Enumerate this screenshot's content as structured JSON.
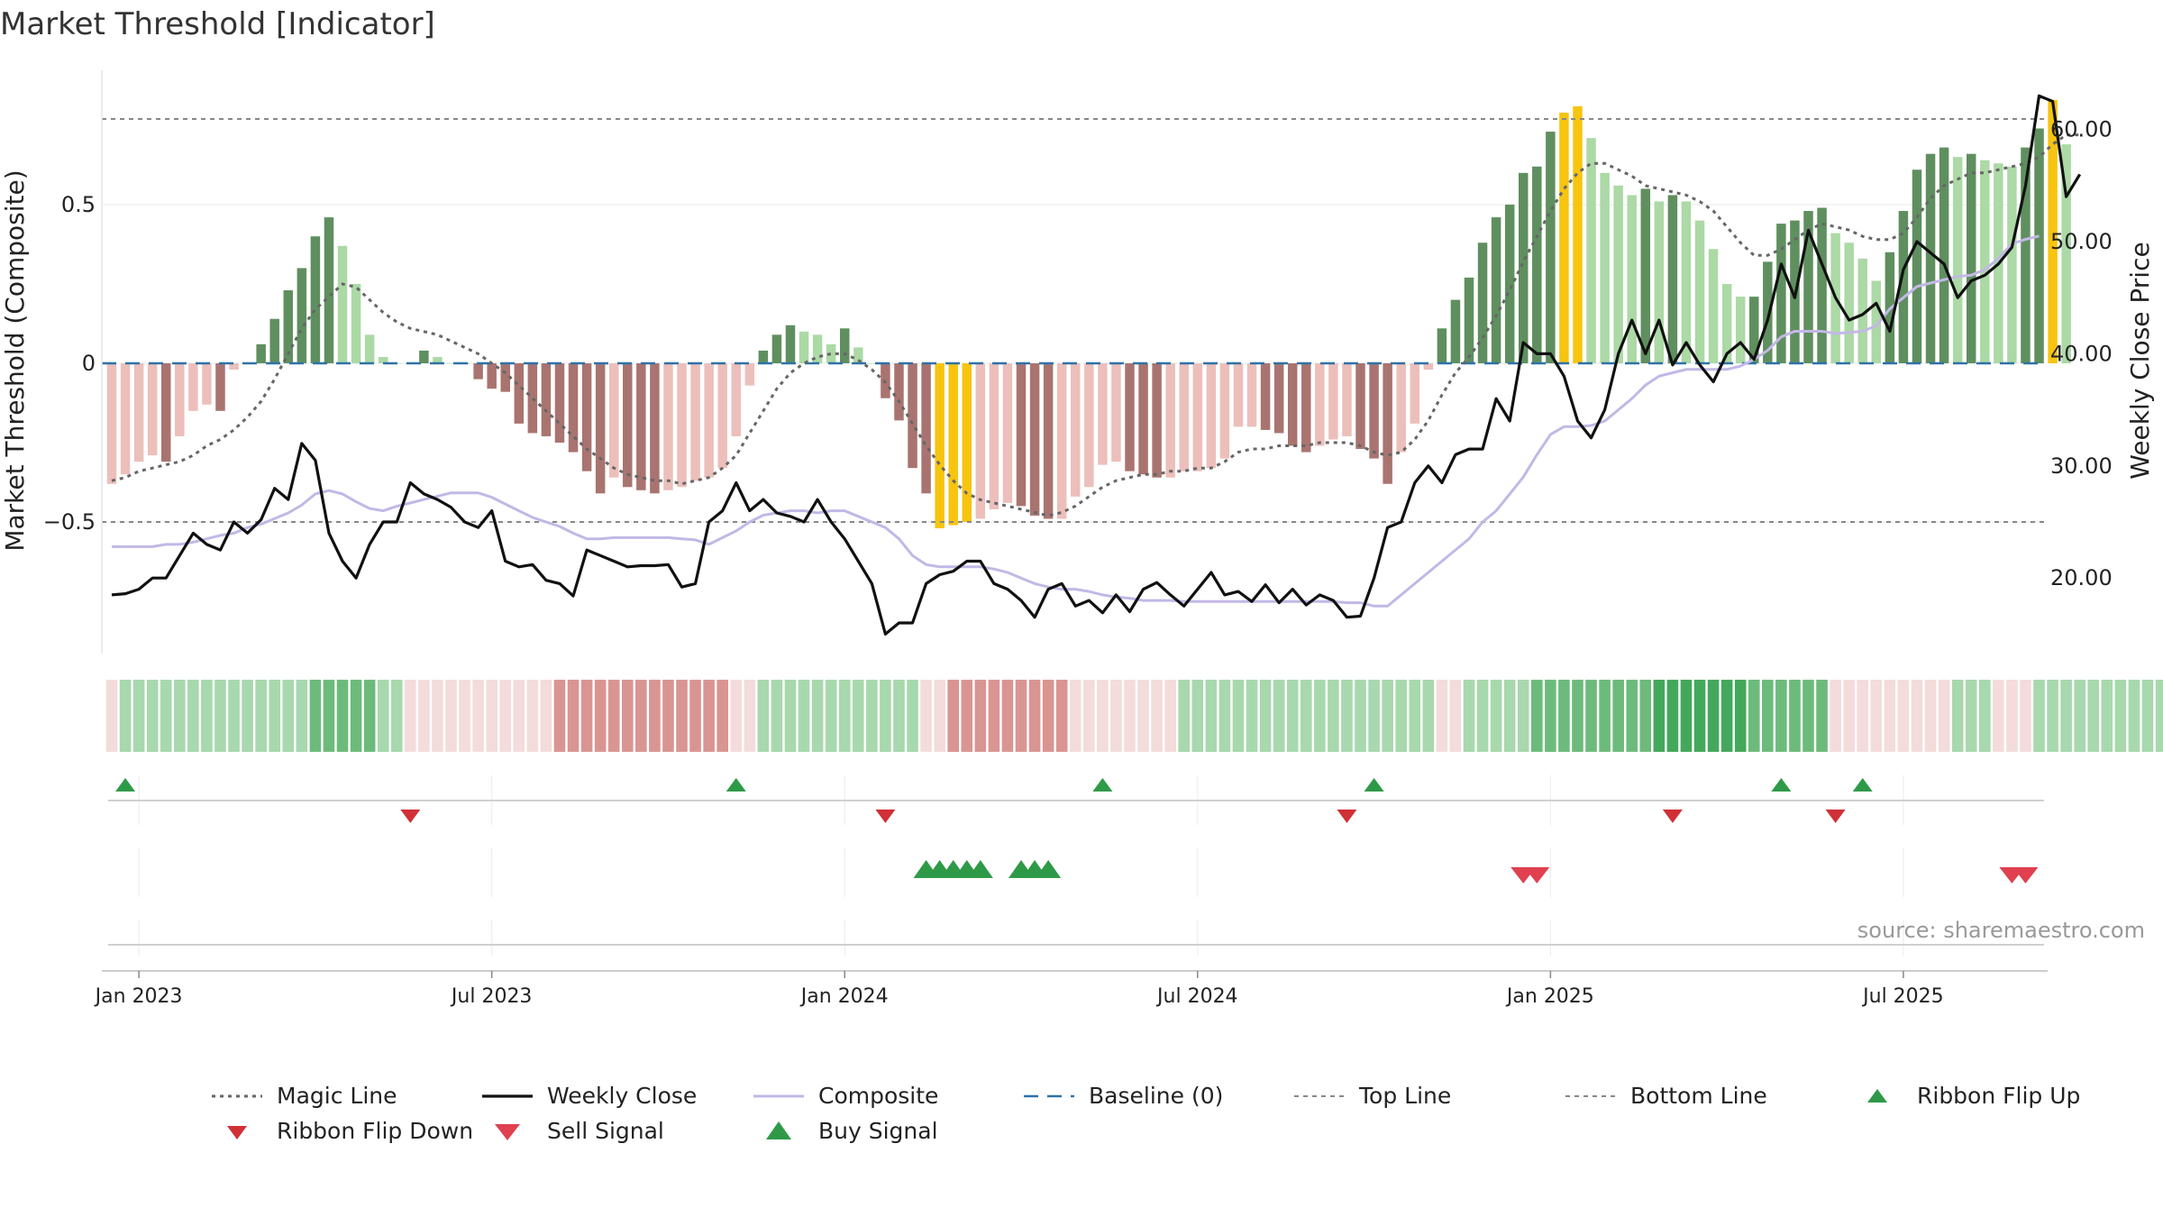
{
  "title": "Market Threshold [Indicator]",
  "source": "source: sharemaestro.com",
  "colors": {
    "bar_strong_up": "#5f8f5f",
    "bar_weak_up": "#acd9a6",
    "bar_strong_down": "#a97470",
    "bar_weak_down": "#ecbfbb",
    "bar_extreme": "#f7c40f",
    "magic": "#666666",
    "close": "#111111",
    "composite": "#c2b8e6",
    "baseline": "#2f72a8",
    "thresholds": "#888888",
    "ribbon_up_strong": "#44a85c",
    "ribbon_up_weak": "#cfe9cf",
    "ribbon_down_strong": "#d99592",
    "ribbon_down_weak": "#f3dcdb",
    "signal_up": "#2e9a48",
    "signal_down": "#d03036",
    "sell": "#e04050"
  },
  "chart_data": {
    "type": "bar",
    "title": "Market Threshold [Indicator]",
    "ylabel_left": "Market Threshold (Composite)",
    "ylabel_right": "Weekly Close Price",
    "yticks_left": [
      "0.5",
      "0",
      "−0.5"
    ],
    "yticks_left_values": [
      0.5,
      0,
      -0.5
    ],
    "yticks_right": [
      "60.00",
      "50.00",
      "40.00",
      "30.00",
      "20.00"
    ],
    "yticks_right_values": [
      60,
      50,
      40,
      30,
      20
    ],
    "ylim_left": [
      -0.92,
      0.93
    ],
    "ylim_right": [
      12.8,
      64.1
    ],
    "xticks": [
      {
        "label": "Jan 2023",
        "week": 2
      },
      {
        "label": "Jul 2023",
        "week": 28
      },
      {
        "label": "Jan 2024",
        "week": 54
      },
      {
        "label": "Jul 2024",
        "week": 80
      },
      {
        "label": "Jan 2025",
        "week": 106
      },
      {
        "label": "Jul 2025",
        "week": 132
      }
    ],
    "first_week": "Dec 2022",
    "weeks": 143,
    "top_line": 0.77,
    "bottom_line": -0.5,
    "baseline": 0,
    "composite": [
      -0.38,
      -0.35,
      -0.31,
      -0.29,
      -0.31,
      -0.23,
      -0.15,
      -0.13,
      -0.15,
      -0.02,
      0,
      0.06,
      0.14,
      0.23,
      0.3,
      0.4,
      0.46,
      0.37,
      0.25,
      0.09,
      0.02,
      0,
      0,
      0.04,
      0.02,
      0,
      0,
      -0.05,
      -0.08,
      -0.09,
      -0.19,
      -0.22,
      -0.23,
      -0.25,
      -0.28,
      -0.34,
      -0.41,
      -0.36,
      -0.39,
      -0.4,
      -0.41,
      -0.4,
      -0.39,
      -0.37,
      -0.36,
      -0.33,
      -0.23,
      -0.07,
      0.04,
      0.09,
      0.12,
      0.1,
      0.09,
      0.06,
      0.11,
      0.05,
      0,
      -0.11,
      -0.18,
      -0.33,
      -0.41,
      -0.52,
      -0.51,
      -0.5,
      -0.49,
      -0.46,
      -0.44,
      -0.45,
      -0.48,
      -0.49,
      -0.49,
      -0.42,
      -0.39,
      -0.32,
      -0.31,
      -0.34,
      -0.35,
      -0.36,
      -0.36,
      -0.34,
      -0.34,
      -0.33,
      -0.3,
      -0.2,
      -0.2,
      -0.21,
      -0.22,
      -0.26,
      -0.28,
      -0.26,
      -0.24,
      -0.23,
      -0.27,
      -0.3,
      -0.38,
      -0.28,
      -0.19,
      -0.02,
      0.11,
      0.2,
      0.27,
      0.38,
      0.46,
      0.5,
      0.6,
      0.62,
      0.73,
      0.79,
      0.81,
      0.71,
      0.6,
      0.56,
      0.53,
      0.55,
      0.51,
      0.53,
      0.51,
      0.45,
      0.36,
      0.25,
      0.21,
      0.21,
      0.32,
      0.44,
      0.45,
      0.48,
      0.49,
      0.41,
      0.38,
      0.33,
      0.26,
      0.35,
      0.48,
      0.61,
      0.66,
      0.68,
      0.65,
      0.66,
      0.64,
      0.63,
      0.62,
      0.68,
      0.74,
      0.83,
      0.69
    ],
    "magic_line": [
      -0.37,
      -0.36,
      -0.34,
      -0.33,
      -0.32,
      -0.31,
      -0.29,
      -0.26,
      -0.24,
      -0.21,
      -0.17,
      -0.12,
      -0.05,
      0.03,
      0.11,
      0.17,
      0.21,
      0.25,
      0.24,
      0.2,
      0.16,
      0.13,
      0.11,
      0.1,
      0.09,
      0.07,
      0.05,
      0.03,
      0,
      -0.03,
      -0.07,
      -0.11,
      -0.15,
      -0.19,
      -0.23,
      -0.27,
      -0.3,
      -0.33,
      -0.35,
      -0.36,
      -0.37,
      -0.37,
      -0.38,
      -0.37,
      -0.36,
      -0.33,
      -0.29,
      -0.22,
      -0.15,
      -0.08,
      -0.03,
      0,
      0.02,
      0.03,
      0.03,
      0.01,
      -0.02,
      -0.06,
      -0.12,
      -0.19,
      -0.26,
      -0.32,
      -0.37,
      -0.41,
      -0.43,
      -0.44,
      -0.45,
      -0.46,
      -0.47,
      -0.48,
      -0.47,
      -0.45,
      -0.42,
      -0.39,
      -0.37,
      -0.36,
      -0.35,
      -0.35,
      -0.34,
      -0.34,
      -0.33,
      -0.33,
      -0.31,
      -0.28,
      -0.27,
      -0.27,
      -0.26,
      -0.26,
      -0.26,
      -0.25,
      -0.25,
      -0.25,
      -0.26,
      -0.28,
      -0.29,
      -0.28,
      -0.24,
      -0.18,
      -0.1,
      -0.03,
      0.02,
      0.08,
      0.15,
      0.23,
      0.32,
      0.4,
      0.48,
      0.55,
      0.6,
      0.63,
      0.63,
      0.61,
      0.59,
      0.56,
      0.55,
      0.54,
      0.53,
      0.51,
      0.48,
      0.43,
      0.38,
      0.34,
      0.34,
      0.36,
      0.39,
      0.42,
      0.44,
      0.43,
      0.42,
      0.4,
      0.39,
      0.39,
      0.41,
      0.46,
      0.52,
      0.56,
      0.58,
      0.6,
      0.6,
      0.61,
      0.62,
      0.63,
      0.65,
      0.69,
      0.72,
      0.72
    ],
    "weekly_close": [
      18.5,
      18.6,
      19,
      20,
      20,
      22,
      24,
      23,
      22.5,
      25,
      24,
      25.2,
      28,
      27,
      32,
      30.5,
      24,
      21.5,
      20,
      23,
      25,
      25,
      28.5,
      27.5,
      27,
      26.3,
      25,
      24.5,
      26,
      21.5,
      21,
      21.2,
      19.8,
      19.5,
      18.4,
      22.5,
      22,
      21.5,
      21,
      21.1,
      21.1,
      21.2,
      19.2,
      19.5,
      25,
      26,
      28.5,
      26,
      27,
      25.8,
      25.5,
      25,
      27,
      25,
      23.5,
      21.5,
      19.5,
      15,
      16,
      16,
      19.5,
      20.3,
      20.6,
      21.5,
      21.5,
      19.5,
      19,
      18,
      16.5,
      19,
      19.5,
      17.5,
      18,
      16.9,
      18.5,
      17,
      19,
      19.6,
      18.5,
      17.5,
      19,
      20.5,
      18.5,
      18.8,
      17.9,
      19.4,
      17.8,
      19,
      17.6,
      18.5,
      18,
      16.5,
      16.6,
      20,
      24.5,
      25,
      28.5,
      30,
      28.5,
      31,
      31.5,
      31.5,
      36,
      34,
      41,
      40,
      40,
      38,
      34,
      32.5,
      35,
      40,
      43,
      40,
      43,
      39,
      41,
      39,
      37.5,
      40,
      41,
      39.5,
      43,
      48,
      45,
      51,
      48,
      45,
      43,
      43.5,
      44.5,
      42,
      47.5,
      50,
      49,
      48,
      45,
      46.5,
      47,
      48,
      49.5,
      55,
      63,
      62.5,
      54,
      56
    ],
    "composite_line": [
      22.8,
      22.8,
      22.8,
      22.8,
      23,
      23,
      23.2,
      23.5,
      23.8,
      24,
      24.5,
      24.8,
      25.3,
      25.8,
      26.5,
      27.5,
      27.8,
      27.5,
      26.8,
      26.2,
      26,
      26.4,
      26.7,
      27,
      27.3,
      27.6,
      27.6,
      27.6,
      27.2,
      26.6,
      26,
      25.4,
      25,
      24.6,
      24,
      23.5,
      23.5,
      23.6,
      23.6,
      23.6,
      23.6,
      23.6,
      23.5,
      23.4,
      23,
      23.6,
      24.2,
      25,
      25.6,
      25.8,
      26,
      26,
      25.8,
      26,
      26,
      25.5,
      25,
      24.5,
      23.5,
      22,
      21.2,
      21,
      21,
      21,
      21,
      20.8,
      20.5,
      20,
      19.5,
      19.2,
      19,
      19,
      18.8,
      18.5,
      18.3,
      18.2,
      18,
      18,
      18,
      17.9,
      17.9,
      17.9,
      17.9,
      17.9,
      17.9,
      17.9,
      17.9,
      17.9,
      17.9,
      17.9,
      17.9,
      17.8,
      17.8,
      17.5,
      17.5,
      18.5,
      19.5,
      20.5,
      21.5,
      22.5,
      23.5,
      25,
      26,
      27.5,
      29,
      31,
      32.8,
      33.5,
      33.5,
      33.6,
      34,
      35,
      36,
      37.2,
      38,
      38.3,
      38.6,
      38.6,
      38.6,
      38.6,
      38.9,
      39.5,
      40.3,
      41.5,
      42,
      42,
      42,
      41.8,
      41.9,
      42,
      42.5,
      44,
      45,
      46,
      46.3,
      46.6,
      46.9,
      47,
      47.5,
      48.5,
      49.8,
      50.2,
      50.5
    ],
    "ribbon": [
      -1,
      1,
      1,
      1,
      1,
      1,
      1,
      1,
      1,
      1,
      1,
      1,
      1,
      1,
      1,
      2,
      2,
      2,
      2,
      2,
      1,
      1,
      -1,
      -1,
      -1,
      -1,
      -1,
      -1,
      -1,
      -1,
      -1,
      -1,
      -1,
      -2,
      -2,
      -2,
      -2,
      -2,
      -2,
      -2,
      -2,
      -2,
      -2,
      -2,
      -2,
      -2,
      -1,
      -1,
      1,
      1,
      1,
      1,
      1,
      1,
      1,
      1,
      1,
      1,
      1,
      1,
      -1,
      -1,
      -2,
      -2,
      -2,
      -2,
      -2,
      -2,
      -2,
      -2,
      -2,
      -1,
      -1,
      -1,
      -1,
      -1,
      -1,
      -1,
      -1,
      1,
      1,
      1,
      1,
      1,
      1,
      1,
      1,
      1,
      1,
      1,
      1,
      1,
      1,
      1,
      1,
      1,
      1,
      1,
      -1,
      -1,
      1,
      1,
      1,
      1,
      1,
      2,
      2,
      2,
      2,
      2,
      2,
      2,
      2,
      2,
      3,
      3,
      3,
      3,
      3,
      3,
      3,
      2,
      2,
      2,
      2,
      2,
      2,
      -1,
      -1,
      -1,
      -1,
      -1,
      -1,
      -1,
      -1,
      -1,
      1,
      1,
      1,
      -1,
      -1,
      -1,
      1,
      1,
      1,
      1,
      1,
      1,
      1,
      1,
      1,
      1,
      1,
      1,
      1,
      1,
      1,
      1,
      1,
      1
    ],
    "ribbon_flip_up_weeks": [
      1,
      46,
      73,
      93,
      123,
      129
    ],
    "ribbon_flip_down_weeks": [
      22,
      57,
      91,
      115,
      127
    ],
    "buy_signal_weeks": [
      60,
      61,
      62,
      63,
      64,
      67,
      68,
      69
    ],
    "sell_signal_weeks": [
      104,
      105,
      140,
      141
    ],
    "legend": [
      {
        "label": "Magic Line",
        "style": "dotted"
      },
      {
        "label": "Weekly Close",
        "style": "solid-black"
      },
      {
        "label": "Composite",
        "style": "solid-lavender"
      },
      {
        "label": "Baseline (0)",
        "style": "dashed-blue"
      },
      {
        "label": "Top Line",
        "style": "dashed-grey"
      },
      {
        "label": "Bottom Line",
        "style": "dashed-grey"
      },
      {
        "label": "Ribbon Flip Up",
        "style": "tri-up"
      },
      {
        "label": "Ribbon Flip Down",
        "style": "tri-down"
      },
      {
        "label": "Sell Signal",
        "style": "tri-down-large"
      },
      {
        "label": "Buy Signal",
        "style": "tri-up-large"
      }
    ],
    "legend_placement": "bottom"
  }
}
